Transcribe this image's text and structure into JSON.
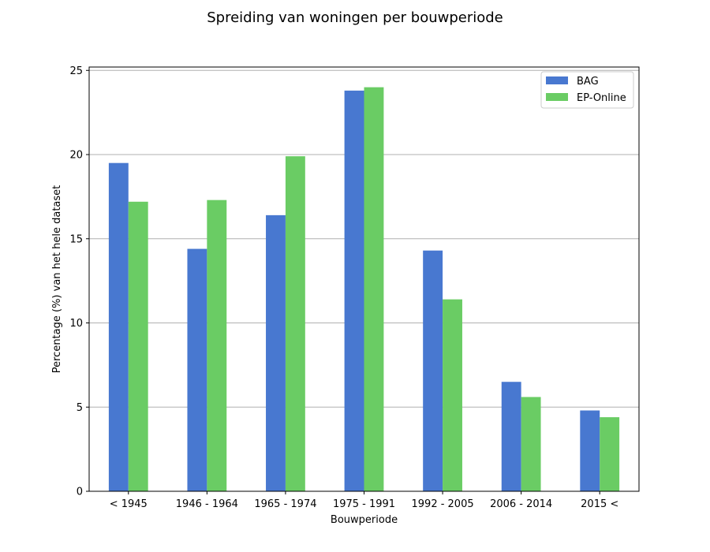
{
  "chart_data": {
    "type": "bar",
    "title": "Spreiding van woningen per bouwperiode",
    "xlabel": "Bouwperiode",
    "ylabel": "Percentage (%) van het hele dataset",
    "categories": [
      "< 1945",
      "1946 - 1964",
      "1965 - 1974",
      "1975 - 1991",
      "1992 - 2005",
      "2006 - 2014",
      "2015 <"
    ],
    "series": [
      {
        "name": "BAG",
        "color": "#4878d0",
        "values": [
          19.5,
          14.4,
          16.4,
          23.8,
          14.3,
          6.5,
          4.8
        ]
      },
      {
        "name": "EP-Online",
        "color": "#6acc64",
        "values": [
          17.2,
          17.3,
          19.9,
          24.0,
          11.4,
          5.6,
          4.4
        ]
      }
    ],
    "ylim": [
      0,
      25.2
    ],
    "yticks": [
      0,
      5,
      10,
      15,
      20,
      25
    ],
    "grid": "horizontal",
    "legend_position": "top-right"
  }
}
